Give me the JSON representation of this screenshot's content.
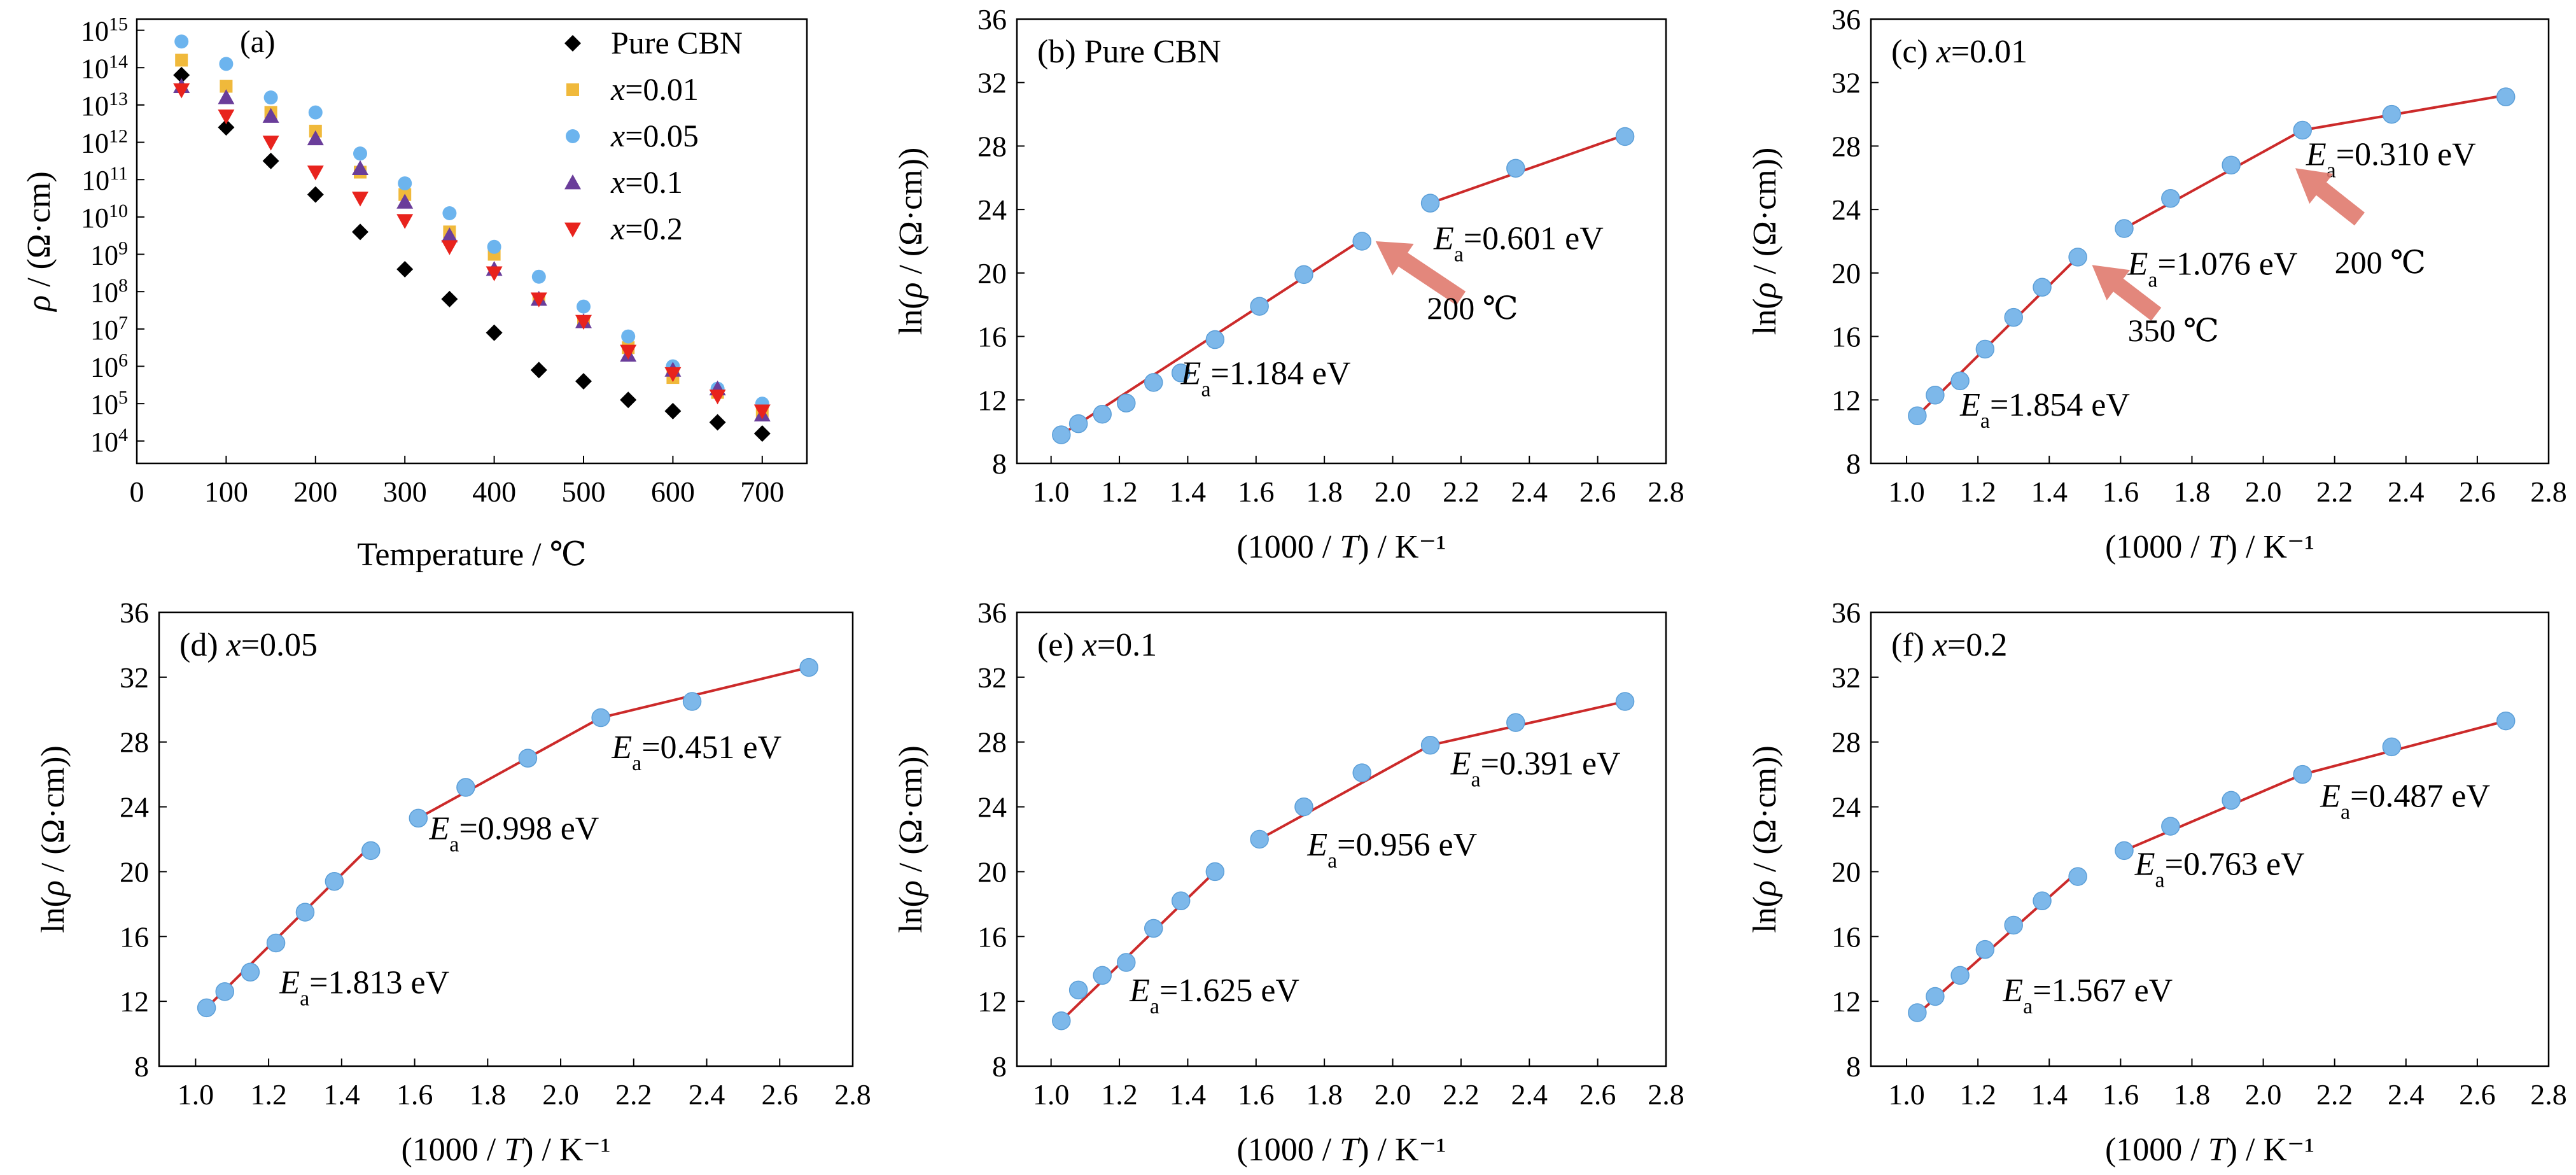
{
  "colors": {
    "marker_blue": "#7db8ea",
    "marker_blue_edge": "#5c9fd8",
    "fit_line": "#cc2a2a",
    "arrow": "#e07a6e",
    "pure": "#000000",
    "x001": "#f0b93b",
    "x005": "#6cb4ee",
    "x01": "#6a3d9a",
    "x02": "#e8231d"
  },
  "chart_data": [
    {
      "type": "scatter",
      "panel_label": "(a)",
      "title": "",
      "xlabel": "Temperature / ℃",
      "ylabel_pre": "ρ",
      "ylabel_post": " / (Ω·cm)",
      "xlim": [
        0,
        750
      ],
      "x_ticks": [
        0,
        100,
        200,
        300,
        400,
        500,
        600,
        700
      ],
      "y_scale": "log",
      "ylim_log10": [
        3.4,
        15.3
      ],
      "y_ticks_exponents": [
        4,
        5,
        6,
        7,
        8,
        9,
        10,
        11,
        12,
        13,
        14,
        15
      ],
      "y_tick_base": "10",
      "legend_position": "top-right",
      "x": [
        50,
        100,
        150,
        200,
        250,
        300,
        350,
        400,
        450,
        500,
        550,
        600,
        650,
        700
      ],
      "series": [
        {
          "name": "Pure CBN",
          "marker": "diamond",
          "color_key": "pure",
          "log10_values": [
            13.8,
            12.4,
            11.5,
            10.6,
            9.6,
            8.6,
            7.8,
            6.9,
            5.9,
            5.6,
            5.1,
            4.8,
            4.5,
            4.2
          ]
        },
        {
          "name": "x=0.01",
          "name_pre": "x",
          "name_post": "=0.01",
          "marker": "square",
          "color_key": "x001",
          "log10_values": [
            14.2,
            13.5,
            12.8,
            12.3,
            11.2,
            10.6,
            9.6,
            9.0,
            7.8,
            7.2,
            6.5,
            5.7,
            5.3,
            4.8
          ]
        },
        {
          "name": "x=0.05",
          "name_pre": "x",
          "name_post": "=0.05",
          "marker": "circle",
          "color_key": "x005",
          "log10_values": [
            14.7,
            14.1,
            13.2,
            12.8,
            11.7,
            10.9,
            10.1,
            9.2,
            8.4,
            7.6,
            6.8,
            6.0,
            5.4,
            5.0
          ]
        },
        {
          "name": "x=0.1",
          "name_pre": "x",
          "name_post": "=0.1",
          "marker": "triangle-up",
          "color_key": "x01",
          "log10_values": [
            13.5,
            13.2,
            12.7,
            12.1,
            11.3,
            10.4,
            9.5,
            8.6,
            7.8,
            7.2,
            6.3,
            5.9,
            5.4,
            4.7
          ]
        },
        {
          "name": "x=0.2",
          "name_pre": "x",
          "name_post": "=0.2",
          "marker": "triangle-down",
          "color_key": "x02",
          "log10_values": [
            13.4,
            12.7,
            12.0,
            11.2,
            10.5,
            9.9,
            9.2,
            8.5,
            7.8,
            7.2,
            6.4,
            5.8,
            5.2,
            4.8
          ]
        }
      ]
    },
    {
      "type": "scatter",
      "panel_label": "(b)",
      "panel_title": "Pure CBN",
      "xlabel_pre": "(1000 / ",
      "xlabel_var": "T",
      "xlabel_post": ") / K⁻¹",
      "ylabel": "ln(ρ / (Ω·cm))",
      "xlim": [
        0.9,
        2.8
      ],
      "ylim": [
        8,
        36
      ],
      "x": [
        1.03,
        1.08,
        1.15,
        1.22,
        1.3,
        1.38,
        1.48,
        1.61,
        1.74,
        1.91,
        2.11,
        2.36,
        2.68
      ],
      "y": [
        9.8,
        10.5,
        11.1,
        11.8,
        13.1,
        13.7,
        15.8,
        17.9,
        19.9,
        22.0,
        24.4,
        26.6,
        28.6
      ],
      "fits": [
        {
          "x": [
            1.03,
            1.91
          ],
          "y": [
            9.8,
            22.1
          ],
          "label": "=1.184 eV",
          "label_x": 1.38,
          "label_y": 13.0
        },
        {
          "x": [
            2.11,
            2.68
          ],
          "y": [
            24.4,
            28.7
          ],
          "label": "=0.601 eV",
          "label_x": 2.12,
          "label_y": 21.5
        }
      ],
      "arrows": [
        {
          "from": [
            2.2,
            18.4
          ],
          "to": [
            1.95,
            22.0
          ],
          "label": "200 ℃",
          "label_x": 2.1,
          "label_y": 17.1
        }
      ]
    },
    {
      "type": "scatter",
      "panel_label": "(c)",
      "panel_title_pre": "x",
      "panel_title_post": "=0.01",
      "xlabel_pre": "(1000 / ",
      "xlabel_var": "T",
      "xlabel_post": ") / K⁻¹",
      "ylabel": "ln(ρ / (Ω·cm))",
      "xlim": [
        0.9,
        2.8
      ],
      "ylim": [
        8,
        36
      ],
      "x": [
        1.03,
        1.08,
        1.15,
        1.22,
        1.3,
        1.38,
        1.48,
        1.61,
        1.74,
        1.91,
        2.11,
        2.36,
        2.68
      ],
      "y": [
        11.0,
        12.3,
        13.2,
        15.2,
        17.2,
        19.1,
        21.0,
        22.8,
        24.7,
        26.8,
        29.0,
        30.0,
        31.1
      ],
      "fits": [
        {
          "x": [
            1.03,
            1.48
          ],
          "y": [
            11.0,
            21.0
          ],
          "label": "=1.854 eV",
          "label_x": 1.15,
          "label_y": 11.0
        },
        {
          "x": [
            1.61,
            2.11
          ],
          "y": [
            22.8,
            29.0
          ],
          "label": "=1.076 eV",
          "label_x": 1.62,
          "label_y": 19.9
        },
        {
          "x": [
            2.11,
            2.68
          ],
          "y": [
            29.0,
            31.2
          ],
          "label": "=0.310 eV",
          "label_x": 2.12,
          "label_y": 26.8
        }
      ],
      "arrows": [
        {
          "from": [
            1.7,
            17.4
          ],
          "to": [
            1.52,
            20.5
          ],
          "label": "350 ℃",
          "label_x": 1.62,
          "label_y": 15.7
        },
        {
          "from": [
            2.27,
            23.4
          ],
          "to": [
            2.09,
            26.6
          ],
          "label": "200 ℃",
          "label_x": 2.2,
          "label_y": 20.0
        }
      ]
    },
    {
      "type": "scatter",
      "panel_label": "(d)",
      "panel_title_pre": "x",
      "panel_title_post": "=0.05",
      "xlabel_pre": "(1000 / ",
      "xlabel_var": "T",
      "xlabel_post": ") / K⁻¹",
      "ylabel": "ln(ρ / (Ω·cm))",
      "xlim": [
        0.9,
        2.8
      ],
      "ylim": [
        8,
        36
      ],
      "x": [
        1.03,
        1.08,
        1.15,
        1.22,
        1.3,
        1.38,
        1.48,
        1.61,
        1.74,
        1.91,
        2.11,
        2.36,
        2.68
      ],
      "y": [
        11.6,
        12.6,
        13.8,
        15.6,
        17.5,
        19.4,
        21.3,
        23.3,
        25.2,
        27.0,
        29.5,
        30.5,
        32.6
      ],
      "fits": [
        {
          "x": [
            1.03,
            1.48
          ],
          "y": [
            11.6,
            21.6
          ],
          "label": "=1.813 eV",
          "label_x": 1.23,
          "label_y": 12.5
        },
        {
          "x": [
            1.61,
            2.11
          ],
          "y": [
            23.3,
            29.5
          ],
          "label": "=0.998 eV",
          "label_x": 1.64,
          "label_y": 22.0
        },
        {
          "x": [
            2.11,
            2.68
          ],
          "y": [
            29.5,
            32.6
          ],
          "label": "=0.451 eV",
          "label_x": 2.14,
          "label_y": 27.0
        }
      ]
    },
    {
      "type": "scatter",
      "panel_label": "(e)",
      "panel_title_pre": "x",
      "panel_title_post": "=0.1",
      "xlabel_pre": "(1000 / ",
      "xlabel_var": "T",
      "xlabel_post": ") / K⁻¹",
      "ylabel": "ln(ρ / (Ω·cm))",
      "xlim": [
        0.9,
        2.8
      ],
      "ylim": [
        8,
        36
      ],
      "x": [
        1.03,
        1.08,
        1.15,
        1.22,
        1.3,
        1.38,
        1.48,
        1.61,
        1.74,
        1.91,
        2.11,
        2.36,
        2.68
      ],
      "y": [
        10.8,
        12.7,
        13.6,
        14.4,
        16.5,
        18.2,
        20.0,
        22.0,
        24.0,
        26.1,
        27.8,
        29.2,
        30.5
      ],
      "fits": [
        {
          "x": [
            1.03,
            1.48
          ],
          "y": [
            10.8,
            20.0
          ],
          "label": "=1.625 eV",
          "label_x": 1.23,
          "label_y": 12.0
        },
        {
          "x": [
            1.61,
            2.11
          ],
          "y": [
            22.0,
            27.8
          ],
          "label": "=0.956 eV",
          "label_x": 1.75,
          "label_y": 21.0
        },
        {
          "x": [
            2.11,
            2.68
          ],
          "y": [
            27.8,
            30.5
          ],
          "label": "=0.391 eV",
          "label_x": 2.17,
          "label_y": 26.0
        }
      ]
    },
    {
      "type": "scatter",
      "panel_label": "(f)",
      "panel_title_pre": "x",
      "panel_title_post": "=0.2",
      "xlabel_pre": "(1000 / ",
      "xlabel_var": "T",
      "xlabel_post": ") / K⁻¹",
      "ylabel": "ln(ρ / (Ω·cm))",
      "xlim": [
        0.9,
        2.8
      ],
      "ylim": [
        8,
        36
      ],
      "x": [
        1.03,
        1.08,
        1.15,
        1.22,
        1.3,
        1.38,
        1.48,
        1.61,
        1.74,
        1.91,
        2.11,
        2.36,
        2.68
      ],
      "y": [
        11.3,
        12.3,
        13.6,
        15.2,
        16.7,
        18.2,
        19.7,
        21.3,
        22.8,
        24.4,
        26.0,
        27.7,
        29.3
      ],
      "fits": [
        {
          "x": [
            1.03,
            1.48
          ],
          "y": [
            11.2,
            20.0
          ],
          "label": "=1.567 eV",
          "label_x": 1.27,
          "label_y": 12.0
        },
        {
          "x": [
            1.61,
            2.11
          ],
          "y": [
            21.3,
            26.0
          ],
          "label": "=0.763 eV",
          "label_x": 1.64,
          "label_y": 19.8
        },
        {
          "x": [
            2.11,
            2.68
          ],
          "y": [
            26.0,
            29.3
          ],
          "label": "=0.487 eV",
          "label_x": 2.16,
          "label_y": 24.0
        }
      ]
    }
  ]
}
